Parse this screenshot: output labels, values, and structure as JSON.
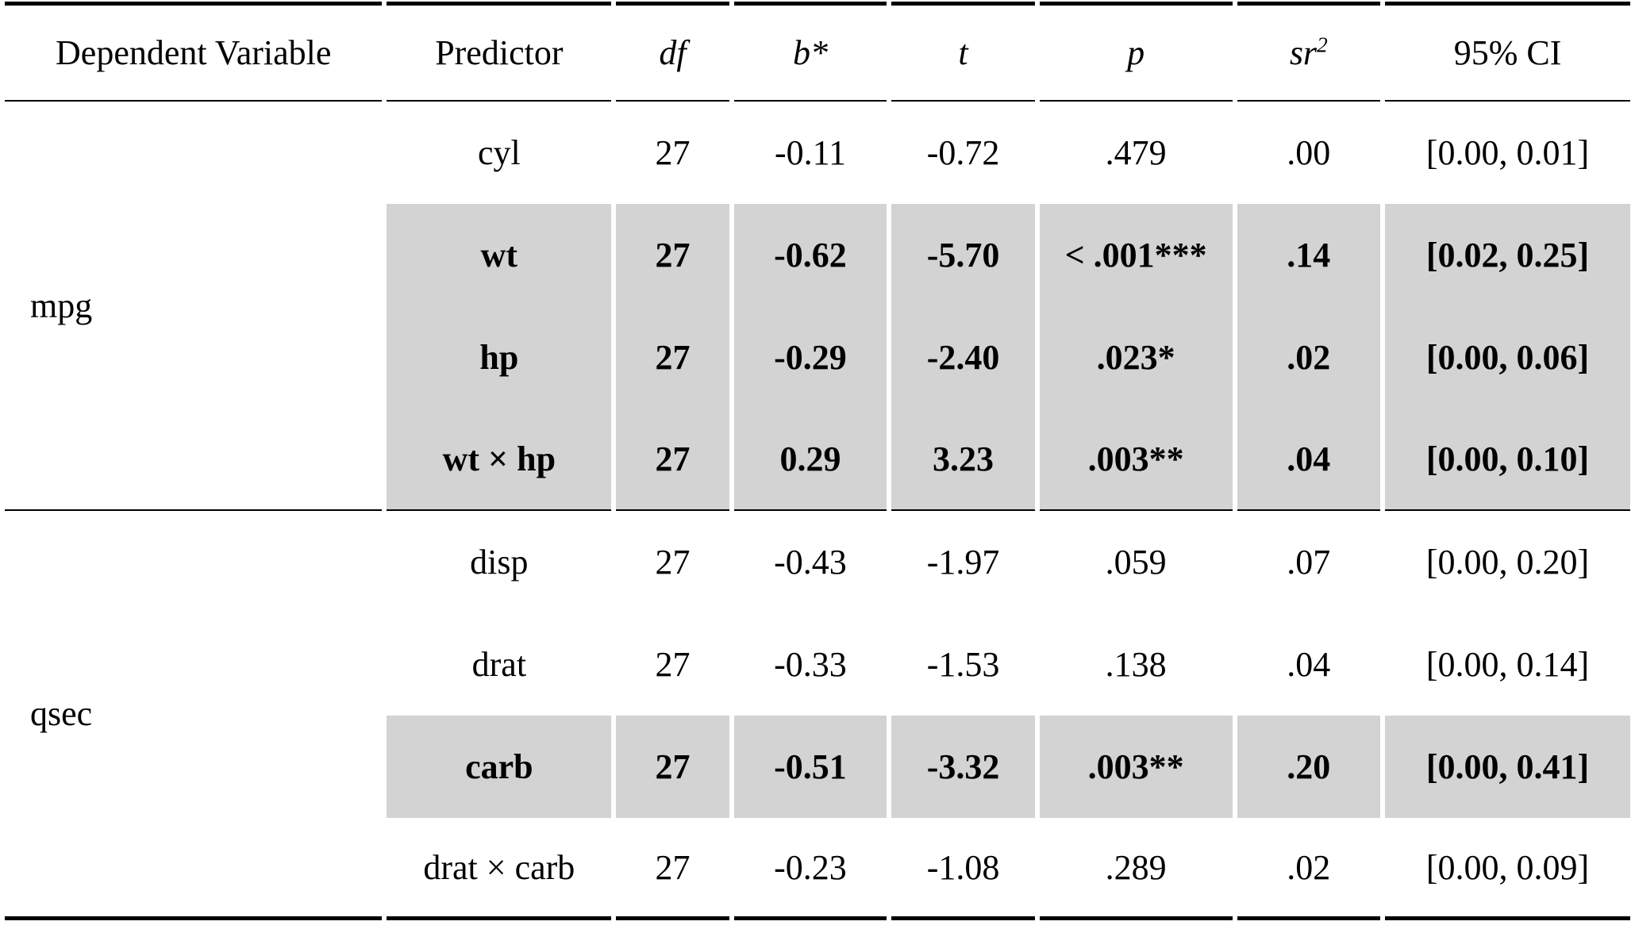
{
  "table": {
    "highlight_color": "#d3d3d3",
    "columns": [
      {
        "label": "Dependent Variable"
      },
      {
        "label": "Predictor"
      },
      {
        "label": "df"
      },
      {
        "label": "b*"
      },
      {
        "label": "t"
      },
      {
        "label": "p"
      },
      {
        "label": "sr",
        "sup": "2"
      },
      {
        "label": "95% CI"
      }
    ],
    "groups": [
      {
        "dependent_variable": "mpg",
        "rows": [
          {
            "predictor": "cyl",
            "df": "27",
            "b": "-0.11",
            "t": "-0.72",
            "p": ".479",
            "sr2": ".00",
            "ci": "[0.00, 0.01]",
            "highlighted": false
          },
          {
            "predictor": "wt",
            "df": "27",
            "b": "-0.62",
            "t": "-5.70",
            "p": "< .001***",
            "sr2": ".14",
            "ci": "[0.02, 0.25]",
            "highlighted": true
          },
          {
            "predictor": "hp",
            "df": "27",
            "b": "-0.29",
            "t": "-2.40",
            "p": ".023*",
            "sr2": ".02",
            "ci": "[0.00, 0.06]",
            "highlighted": true
          },
          {
            "predictor": "wt × hp",
            "df": "27",
            "b": "0.29",
            "t": "3.23",
            "p": ".003**",
            "sr2": ".04",
            "ci": "[0.00, 0.10]",
            "highlighted": true
          }
        ]
      },
      {
        "dependent_variable": "qsec",
        "rows": [
          {
            "predictor": "disp",
            "df": "27",
            "b": "-0.43",
            "t": "-1.97",
            "p": ".059",
            "sr2": ".07",
            "ci": "[0.00, 0.20]",
            "highlighted": false
          },
          {
            "predictor": "drat",
            "df": "27",
            "b": "-0.33",
            "t": "-1.53",
            "p": ".138",
            "sr2": ".04",
            "ci": "[0.00, 0.14]",
            "highlighted": false
          },
          {
            "predictor": "carb",
            "df": "27",
            "b": "-0.51",
            "t": "-3.32",
            "p": ".003**",
            "sr2": ".20",
            "ci": "[0.00, 0.41]",
            "highlighted": true
          },
          {
            "predictor": "drat × carb",
            "df": "27",
            "b": "-0.23",
            "t": "-1.08",
            "p": ".289",
            "sr2": ".02",
            "ci": "[0.00, 0.09]",
            "highlighted": false
          }
        ]
      }
    ]
  }
}
